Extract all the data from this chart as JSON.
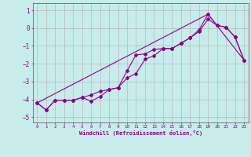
{
  "xlabel": "Windchill (Refroidissement éolien,°C)",
  "xlim": [
    -0.5,
    23.5
  ],
  "ylim": [
    -5.3,
    1.4
  ],
  "xticks": [
    0,
    1,
    2,
    3,
    4,
    5,
    6,
    7,
    8,
    9,
    10,
    11,
    12,
    13,
    14,
    15,
    16,
    17,
    18,
    19,
    20,
    21,
    22,
    23
  ],
  "yticks": [
    -5,
    -4,
    -3,
    -2,
    -1,
    0,
    1
  ],
  "bg_color": "#c8ecec",
  "grid_color": "#b0b0b0",
  "line_color": "#880088",
  "line1_x": [
    0,
    1,
    2,
    3,
    4,
    5,
    6,
    7,
    8,
    9,
    10,
    11,
    12,
    13,
    14,
    15,
    16,
    17,
    18,
    19,
    20,
    21,
    22,
    23
  ],
  "line1_y": [
    -4.2,
    -4.6,
    -4.05,
    -4.05,
    -4.05,
    -3.9,
    -3.75,
    -3.55,
    -3.45,
    -3.35,
    -2.8,
    -2.55,
    -1.75,
    -1.55,
    -1.15,
    -1.15,
    -0.85,
    -0.55,
    -0.2,
    0.5,
    0.15,
    0.05,
    -0.5,
    -1.8
  ],
  "line2_x": [
    0,
    1,
    2,
    3,
    4,
    5,
    6,
    7,
    8,
    9,
    10,
    11,
    12,
    13,
    14,
    15,
    16,
    17,
    18,
    19,
    20,
    21,
    22,
    23
  ],
  "line2_y": [
    -4.2,
    -4.6,
    -4.05,
    -4.05,
    -4.05,
    -3.9,
    -4.1,
    -3.85,
    -3.45,
    -3.35,
    -2.4,
    -1.5,
    -1.45,
    -1.2,
    -1.15,
    -1.15,
    -0.85,
    -0.55,
    -0.1,
    0.78,
    0.15,
    0.05,
    -0.5,
    -1.8
  ],
  "line3_x": [
    0,
    19,
    23
  ],
  "line3_y": [
    -4.2,
    0.78,
    -1.8
  ]
}
